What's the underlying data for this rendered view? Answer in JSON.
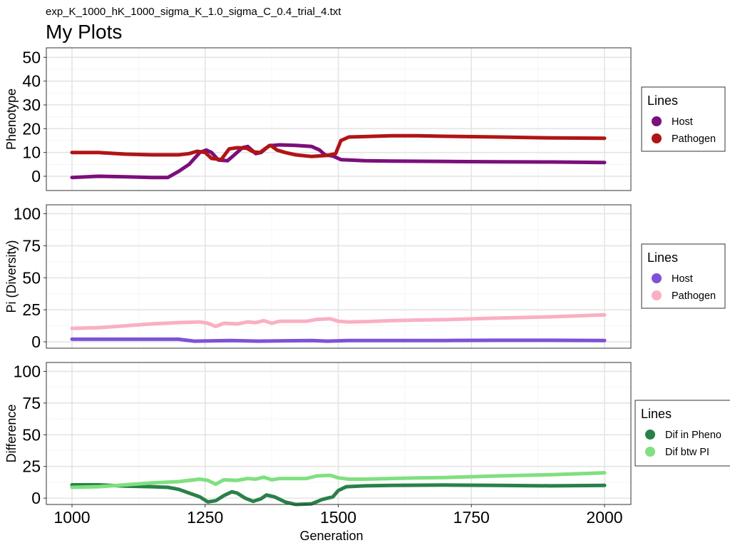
{
  "subtitle": "exp_K_1000_hK_1000_sigma_K_1.0_sigma_C_0.4_trial_4.txt",
  "title": "My Plots",
  "chart_data": [
    {
      "type": "line",
      "panel": "phenotype",
      "ylabel": "Phenotype",
      "xlabel": "",
      "xlim": [
        1000,
        2000
      ],
      "ylim": [
        -6,
        54
      ],
      "yticks": [
        0,
        10,
        20,
        30,
        40,
        50
      ],
      "xticks": [
        1000,
        1250,
        1500,
        1750,
        2000
      ],
      "grid": true,
      "legend": {
        "title": "Lines",
        "position": "right"
      },
      "series": [
        {
          "name": "Host",
          "color": "#7b0f7b",
          "points": [
            [
              1000,
              -0.5
            ],
            [
              1050,
              0
            ],
            [
              1100,
              -0.2
            ],
            [
              1150,
              -0.5
            ],
            [
              1180,
              -0.5
            ],
            [
              1200,
              2
            ],
            [
              1220,
              5
            ],
            [
              1240,
              10
            ],
            [
              1252,
              11
            ],
            [
              1262,
              10
            ],
            [
              1275,
              6.8
            ],
            [
              1292,
              6.5
            ],
            [
              1305,
              9
            ],
            [
              1320,
              12
            ],
            [
              1330,
              12.5
            ],
            [
              1345,
              9.5
            ],
            [
              1355,
              10
            ],
            [
              1370,
              12.8
            ],
            [
              1390,
              13.2
            ],
            [
              1420,
              13
            ],
            [
              1450,
              12.5
            ],
            [
              1465,
              11
            ],
            [
              1475,
              9
            ],
            [
              1490,
              8.5
            ],
            [
              1505,
              7
            ],
            [
              1550,
              6.5
            ],
            [
              1600,
              6.4
            ],
            [
              1700,
              6.2
            ],
            [
              1800,
              6.1
            ],
            [
              1900,
              6
            ],
            [
              2000,
              5.8
            ]
          ]
        },
        {
          "name": "Pathogen",
          "color": "#b01515",
          "points": [
            [
              1000,
              10
            ],
            [
              1050,
              10
            ],
            [
              1100,
              9.3
            ],
            [
              1150,
              9
            ],
            [
              1200,
              9
            ],
            [
              1220,
              9.5
            ],
            [
              1235,
              10.5
            ],
            [
              1250,
              10
            ],
            [
              1262,
              7.5
            ],
            [
              1280,
              7
            ],
            [
              1295,
              11.5
            ],
            [
              1310,
              12
            ],
            [
              1328,
              11.8
            ],
            [
              1340,
              10.3
            ],
            [
              1353,
              10
            ],
            [
              1365,
              12
            ],
            [
              1373,
              13
            ],
            [
              1385,
              11
            ],
            [
              1400,
              10
            ],
            [
              1420,
              9
            ],
            [
              1450,
              8.3
            ],
            [
              1480,
              8.8
            ],
            [
              1495,
              9.5
            ],
            [
              1505,
              15
            ],
            [
              1520,
              16.5
            ],
            [
              1600,
              17
            ],
            [
              1650,
              17
            ],
            [
              1700,
              16.8
            ],
            [
              1800,
              16.5
            ],
            [
              1900,
              16.1
            ],
            [
              2000,
              16
            ]
          ]
        }
      ]
    },
    {
      "type": "line",
      "panel": "diversity",
      "ylabel": "Pi (Diversity)",
      "xlabel": "",
      "xlim": [
        1000,
        2000
      ],
      "ylim": [
        -5,
        107
      ],
      "yticks": [
        0,
        25,
        50,
        75,
        100
      ],
      "xticks": [
        1000,
        1250,
        1500,
        1750,
        2000
      ],
      "grid": true,
      "legend": {
        "title": "Lines",
        "position": "right"
      },
      "series": [
        {
          "name": "Host",
          "color": "#7d52d6",
          "points": [
            [
              1000,
              2
            ],
            [
              1100,
              2
            ],
            [
              1200,
              2
            ],
            [
              1230,
              0.5
            ],
            [
              1300,
              1
            ],
            [
              1350,
              0.5
            ],
            [
              1400,
              0.8
            ],
            [
              1450,
              1
            ],
            [
              1480,
              0.5
            ],
            [
              1520,
              1
            ],
            [
              1600,
              1
            ],
            [
              1700,
              1
            ],
            [
              1800,
              1.2
            ],
            [
              1900,
              1.2
            ],
            [
              2000,
              1
            ]
          ]
        },
        {
          "name": "Pathogen",
          "color": "#f9b0c2",
          "points": [
            [
              1000,
              10.5
            ],
            [
              1050,
              11
            ],
            [
              1100,
              12.5
            ],
            [
              1150,
              14
            ],
            [
              1200,
              15
            ],
            [
              1240,
              15.5
            ],
            [
              1255,
              14.5
            ],
            [
              1270,
              12
            ],
            [
              1285,
              14.5
            ],
            [
              1310,
              14
            ],
            [
              1330,
              15.5
            ],
            [
              1345,
              15
            ],
            [
              1360,
              16.5
            ],
            [
              1375,
              14.5
            ],
            [
              1390,
              16
            ],
            [
              1440,
              16
            ],
            [
              1460,
              17.5
            ],
            [
              1485,
              18
            ],
            [
              1500,
              16
            ],
            [
              1520,
              15.5
            ],
            [
              1550,
              15.8
            ],
            [
              1600,
              16.5
            ],
            [
              1650,
              17
            ],
            [
              1700,
              17.3
            ],
            [
              1800,
              18.5
            ],
            [
              1900,
              19.5
            ],
            [
              2000,
              21
            ]
          ]
        }
      ]
    },
    {
      "type": "line",
      "panel": "difference",
      "ylabel": "Difference",
      "xlabel": "Generation",
      "xlim": [
        1000,
        2000
      ],
      "ylim": [
        -5,
        107
      ],
      "yticks": [
        0,
        25,
        50,
        75,
        100
      ],
      "xticks": [
        1000,
        1250,
        1500,
        1750,
        2000
      ],
      "grid": true,
      "legend": {
        "title": "Lines",
        "position": "right"
      },
      "series": [
        {
          "name": "Dif in Pheno",
          "color": "#2a8049",
          "points": [
            [
              1000,
              10.5
            ],
            [
              1050,
              10.5
            ],
            [
              1100,
              9.5
            ],
            [
              1150,
              9
            ],
            [
              1180,
              8.5
            ],
            [
              1200,
              7
            ],
            [
              1220,
              4
            ],
            [
              1240,
              1
            ],
            [
              1255,
              -3
            ],
            [
              1270,
              -2
            ],
            [
              1285,
              2
            ],
            [
              1300,
              5
            ],
            [
              1310,
              4
            ],
            [
              1325,
              0
            ],
            [
              1340,
              -2.5
            ],
            [
              1355,
              -0.5
            ],
            [
              1365,
              2.5
            ],
            [
              1380,
              1
            ],
            [
              1400,
              -3
            ],
            [
              1420,
              -5
            ],
            [
              1450,
              -4.5
            ],
            [
              1470,
              -1
            ],
            [
              1490,
              1
            ],
            [
              1500,
              6
            ],
            [
              1515,
              9
            ],
            [
              1550,
              9.7
            ],
            [
              1600,
              10
            ],
            [
              1700,
              10.3
            ],
            [
              1800,
              10
            ],
            [
              1900,
              9.7
            ],
            [
              2000,
              10
            ]
          ]
        },
        {
          "name": "Dif btw PI",
          "color": "#7fe07f",
          "points": [
            [
              1000,
              8.5
            ],
            [
              1050,
              9
            ],
            [
              1100,
              10.5
            ],
            [
              1150,
              12
            ],
            [
              1200,
              13
            ],
            [
              1240,
              15
            ],
            [
              1255,
              14
            ],
            [
              1270,
              11
            ],
            [
              1285,
              14.5
            ],
            [
              1310,
              14
            ],
            [
              1330,
              15.5
            ],
            [
              1345,
              15
            ],
            [
              1360,
              16.5
            ],
            [
              1375,
              14.5
            ],
            [
              1390,
              15.5
            ],
            [
              1440,
              15.5
            ],
            [
              1460,
              17.5
            ],
            [
              1485,
              18
            ],
            [
              1500,
              16
            ],
            [
              1520,
              15
            ],
            [
              1550,
              15
            ],
            [
              1600,
              15.5
            ],
            [
              1650,
              16
            ],
            [
              1700,
              16.3
            ],
            [
              1800,
              17.5
            ],
            [
              1900,
              18.5
            ],
            [
              2000,
              20
            ]
          ]
        }
      ]
    }
  ]
}
